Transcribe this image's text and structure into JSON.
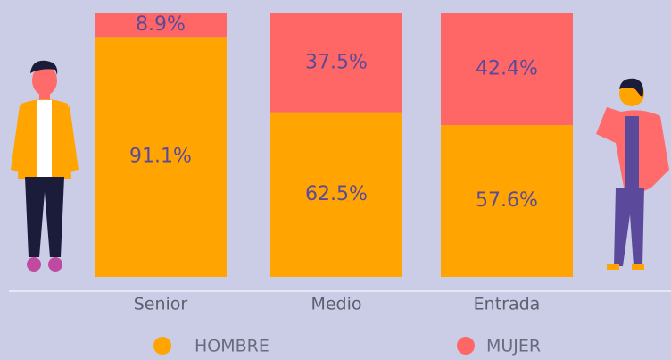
{
  "chart_data": {
    "type": "stacked_bar",
    "categories": [
      "Senior",
      "Medio",
      "Entrada"
    ],
    "ylim": [
      0,
      100
    ],
    "series": [
      {
        "name": "HOMBRE",
        "color": "#ffa400",
        "values": [
          91.1,
          62.5,
          57.6
        ],
        "value_labels": [
          "91.1%",
          "62.5%",
          "57.6%"
        ]
      },
      {
        "name": "MUJER",
        "color": "#ff6666",
        "values": [
          8.9,
          37.5,
          42.4
        ],
        "value_labels": [
          "8.9%",
          "37.5%",
          "42.4%"
        ]
      }
    ]
  }
}
